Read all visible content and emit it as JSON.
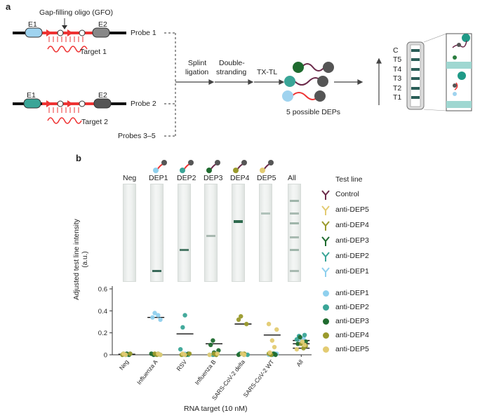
{
  "panel_a": {
    "letter": "a",
    "gfo_label": "Gap-filling oligo (GFO)",
    "e1": "E1",
    "e2": "E2",
    "probe1": "Probe 1",
    "probe2": "Probe 2",
    "probes35": "Probes 3–5",
    "target1": "Target 1",
    "target2": "Target 2",
    "phos": "P",
    "step1_l1": "Splint",
    "step1_l2": "ligation",
    "step2_l1": "Double-",
    "step2_l2": "stranding",
    "step3": "TX-TL",
    "dep_caption": "5 possible DEPs",
    "lfa_lines": [
      "C",
      "T5",
      "T4",
      "T3",
      "T2",
      "T1"
    ]
  },
  "panel_b": {
    "letter": "b",
    "strip_labels": [
      "Neg",
      "DEP1",
      "DEP2",
      "DEP3",
      "DEP4",
      "DEP5",
      "All"
    ],
    "test_line_title": "Test line",
    "test_line_legend": [
      "Control",
      "anti-DEP5",
      "anti-DEP4",
      "anti-DEP3",
      "anti-DEP2",
      "anti-DEP1"
    ],
    "colors": {
      "dep1": "#8fd0ee",
      "dep2": "#3aa597",
      "dep3": "#1f6b2f",
      "dep4": "#9a9a2c",
      "dep5": "#e3cb72",
      "control": "#6b2a4a"
    }
  },
  "chart_data": {
    "type": "scatter",
    "ylabel": "Adjusted test line intensity (a.u.)",
    "xlabel": "RNA target (10 nM)",
    "ylim": [
      0,
      0.6
    ],
    "yticks": [
      "0",
      "0.2",
      "0.4",
      "0.6"
    ],
    "categories": [
      "Neg",
      "Influenza A",
      "RSV",
      "Influenza B",
      "SARS-CoV-2 delta",
      "SARS-CoV-2 WT",
      "All"
    ],
    "series": [
      {
        "name": "anti-DEP1",
        "points": [
          [
            0,
            0.0
          ],
          [
            0,
            0.01
          ],
          [
            0,
            0.0
          ],
          [
            1,
            0.38
          ],
          [
            1,
            0.34
          ],
          [
            1,
            0.32
          ],
          [
            1,
            0.36
          ],
          [
            2,
            0.01
          ],
          [
            2,
            0.0
          ],
          [
            3,
            0.0
          ],
          [
            3,
            0.01
          ],
          [
            4,
            0.0
          ],
          [
            4,
            0.01
          ],
          [
            5,
            0.0
          ],
          [
            5,
            0.01
          ],
          [
            6,
            0.15
          ],
          [
            6,
            0.13
          ],
          [
            6,
            0.17
          ]
        ]
      },
      {
        "name": "anti-DEP2",
        "points": [
          [
            0,
            0.0
          ],
          [
            0,
            0.01
          ],
          [
            1,
            0.0
          ],
          [
            1,
            0.01
          ],
          [
            2,
            0.36
          ],
          [
            2,
            0.25
          ],
          [
            2,
            0.05
          ],
          [
            2,
            0.0
          ],
          [
            3,
            0.01
          ],
          [
            3,
            0.0
          ],
          [
            4,
            0.01
          ],
          [
            4,
            0.0
          ],
          [
            5,
            0.01
          ],
          [
            5,
            0.0
          ],
          [
            6,
            0.17
          ],
          [
            6,
            0.14
          ],
          [
            6,
            0.18
          ]
        ]
      },
      {
        "name": "anti-DEP3",
        "points": [
          [
            0,
            0.0
          ],
          [
            0,
            0.01
          ],
          [
            1,
            0.0
          ],
          [
            1,
            0.01
          ],
          [
            2,
            0.01
          ],
          [
            2,
            0.0
          ],
          [
            3,
            0.13
          ],
          [
            3,
            0.09
          ],
          [
            3,
            0.04
          ],
          [
            3,
            0.0
          ],
          [
            3,
            0.02
          ],
          [
            4,
            0.01
          ],
          [
            4,
            0.0
          ],
          [
            5,
            0.0
          ],
          [
            5,
            0.01
          ],
          [
            6,
            0.16
          ],
          [
            6,
            0.1
          ],
          [
            6,
            0.12
          ]
        ]
      },
      {
        "name": "anti-DEP4",
        "points": [
          [
            0,
            0.0
          ],
          [
            0,
            0.01
          ],
          [
            1,
            0.0
          ],
          [
            1,
            0.01
          ],
          [
            2,
            0.0
          ],
          [
            2,
            0.01
          ],
          [
            3,
            0.0
          ],
          [
            3,
            0.01
          ],
          [
            4,
            0.35
          ],
          [
            4,
            0.32
          ],
          [
            4,
            0.28
          ],
          [
            4,
            0.01
          ],
          [
            5,
            0.0
          ],
          [
            5,
            0.01
          ],
          [
            6,
            0.08
          ],
          [
            6,
            0.06
          ],
          [
            6,
            0.1
          ]
        ]
      },
      {
        "name": "anti-DEP5",
        "points": [
          [
            0,
            0.0
          ],
          [
            0,
            0.01
          ],
          [
            1,
            0.0
          ],
          [
            1,
            0.01
          ],
          [
            2,
            0.0
          ],
          [
            2,
            0.01
          ],
          [
            3,
            0.0
          ],
          [
            3,
            0.01
          ],
          [
            4,
            0.0
          ],
          [
            4,
            0.01
          ],
          [
            5,
            0.28
          ],
          [
            5,
            0.23
          ],
          [
            5,
            0.07
          ],
          [
            5,
            0.13
          ],
          [
            5,
            0.02
          ],
          [
            6,
            0.05
          ],
          [
            6,
            0.09
          ],
          [
            6,
            0.12
          ]
        ]
      }
    ],
    "means": [
      [
        0,
        0.005
      ],
      [
        1,
        0.34
      ],
      [
        2,
        0.19
      ],
      [
        3,
        0.1
      ],
      [
        4,
        0.28
      ],
      [
        5,
        0.18
      ],
      [
        6,
        0.13
      ],
      [
        6,
        0.1
      ],
      [
        6,
        0.06
      ]
    ]
  }
}
